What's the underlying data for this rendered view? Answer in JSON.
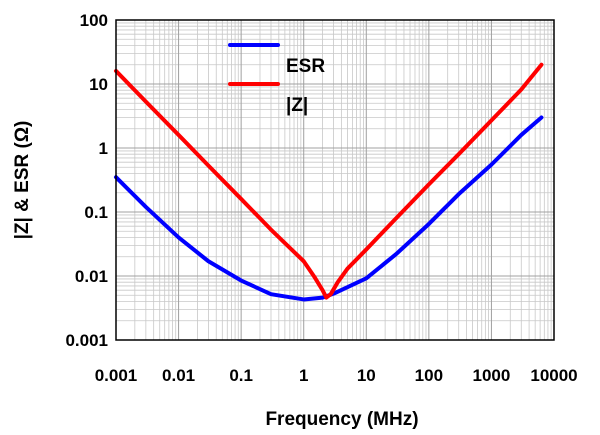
{
  "chart_data": {
    "type": "line",
    "xlabel": "Frequency (MHz)",
    "ylabel": "|Z| & ESR (Ω)",
    "x_scale": "log",
    "y_scale": "log",
    "xlim": [
      0.001,
      10000
    ],
    "ylim": [
      0.001,
      100
    ],
    "x_tick_labels": [
      "0.001",
      "0.01",
      "0.1",
      "1",
      "10",
      "100",
      "1000",
      "10000"
    ],
    "y_tick_labels": [
      "0.001",
      "0.01",
      "0.1",
      "1",
      "10",
      "100"
    ],
    "grid": true,
    "legend_position": "top-center",
    "series": [
      {
        "name": "ESR",
        "color": "#0000ff",
        "points": [
          [
            0.001,
            0.35
          ],
          [
            0.003,
            0.12
          ],
          [
            0.01,
            0.04
          ],
          [
            0.03,
            0.017
          ],
          [
            0.1,
            0.0085
          ],
          [
            0.3,
            0.0052
          ],
          [
            1,
            0.0043
          ],
          [
            2,
            0.0046
          ],
          [
            3,
            0.0053
          ],
          [
            10,
            0.0092
          ],
          [
            30,
            0.022
          ],
          [
            100,
            0.065
          ],
          [
            300,
            0.19
          ],
          [
            1000,
            0.55
          ],
          [
            3000,
            1.6
          ],
          [
            6300,
            3.0
          ]
        ]
      },
      {
        "name": "|Z|",
        "color": "#ff0000",
        "points": [
          [
            0.001,
            16
          ],
          [
            0.003,
            5.3
          ],
          [
            0.01,
            1.6
          ],
          [
            0.03,
            0.53
          ],
          [
            0.1,
            0.16
          ],
          [
            0.3,
            0.053
          ],
          [
            1,
            0.017
          ],
          [
            1.5,
            0.0095
          ],
          [
            2.0,
            0.006
          ],
          [
            2.3,
            0.0046
          ],
          [
            2.7,
            0.0052
          ],
          [
            3.5,
            0.008
          ],
          [
            5,
            0.013
          ],
          [
            10,
            0.026
          ],
          [
            30,
            0.08
          ],
          [
            100,
            0.27
          ],
          [
            300,
            0.8
          ],
          [
            1000,
            2.7
          ],
          [
            3000,
            8.2
          ],
          [
            6300,
            20
          ]
        ]
      }
    ]
  }
}
